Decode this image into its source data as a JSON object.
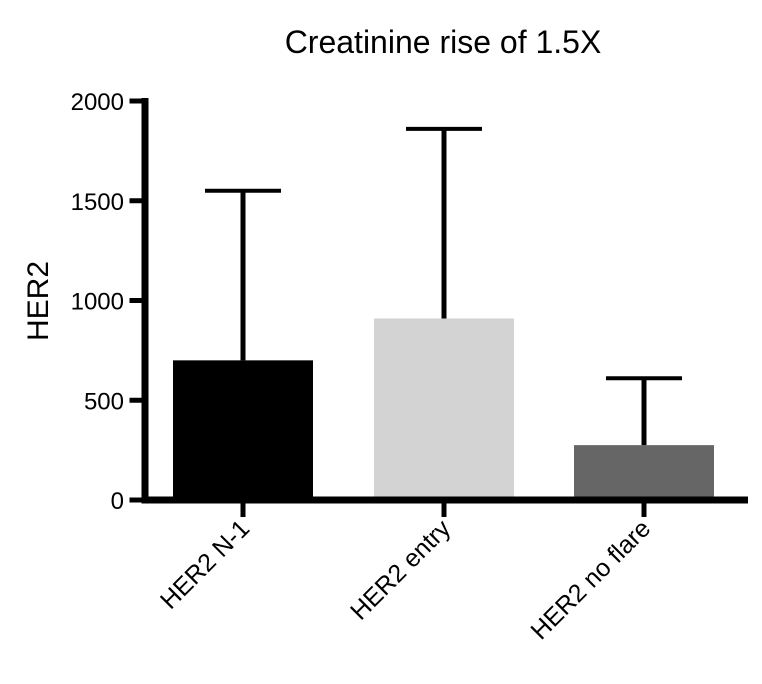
{
  "chart_data": {
    "type": "bar",
    "title": "Creatinine rise of 1.5X",
    "xlabel": "",
    "ylabel": "HER2",
    "ylim": [
      0,
      2000
    ],
    "yticks": [
      0,
      500,
      1000,
      1500,
      2000
    ],
    "ytick_labels": [
      "0",
      "500",
      "1000",
      "1500",
      "2000"
    ],
    "categories": [
      "HER2 N-1",
      "HER2 entry",
      "HER2 no flare"
    ],
    "values": [
      700,
      910,
      275
    ],
    "error_upper": [
      1550,
      1860,
      610
    ],
    "colors": [
      "#000000",
      "#d3d3d3",
      "#666666"
    ],
    "error_bar_color": "#000000",
    "axis_color": "#000000",
    "grid": false,
    "legend": "none"
  }
}
